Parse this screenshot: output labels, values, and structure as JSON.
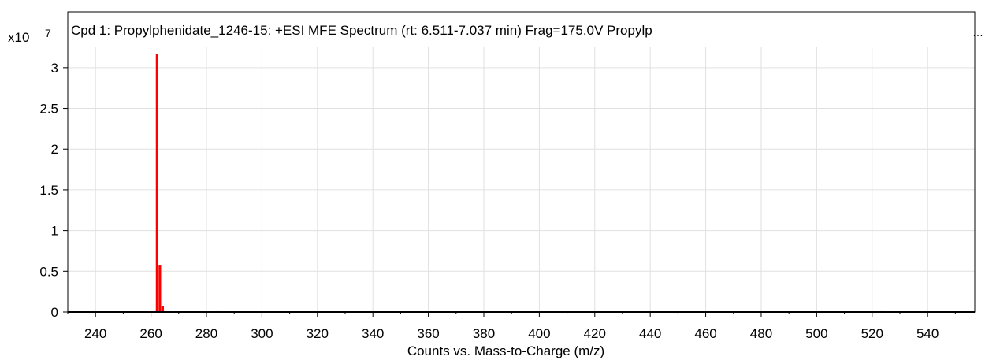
{
  "chart_data": {
    "type": "bar",
    "title": "Cpd 1: Propylphenidate_1246-15: +ESI MFE Spectrum (rt: 6.511-7.037 min) Frag=175.0V Propylp",
    "title_overflow": "…",
    "xlabel": "Counts vs. Mass-to-Charge (m/z)",
    "ylabel": "",
    "y_multiplier_base": "x10",
    "y_multiplier_exponent": "7",
    "xlim": [
      230,
      557
    ],
    "ylim": [
      0,
      3.25
    ],
    "x_ticks": [
      "240",
      "260",
      "280",
      "300",
      "320",
      "340",
      "360",
      "380",
      "400",
      "420",
      "440",
      "460",
      "480",
      "500",
      "520",
      "540"
    ],
    "y_ticks": [
      "0",
      "0.5",
      "1",
      "1.5",
      "2",
      "2.5",
      "3"
    ],
    "grid": true,
    "bar_color": "#ff0000",
    "peaks": [
      {
        "x": 262.2,
        "y": 3.17
      },
      {
        "x": 263.2,
        "y": 0.58
      },
      {
        "x": 264.2,
        "y": 0.07
      },
      {
        "x": 265.2,
        "y": 0.01
      },
      {
        "x": 284.2,
        "y": 0.01
      },
      {
        "x": 523.5,
        "y": 0.01
      },
      {
        "x": 524.5,
        "y": 0.005
      }
    ]
  }
}
